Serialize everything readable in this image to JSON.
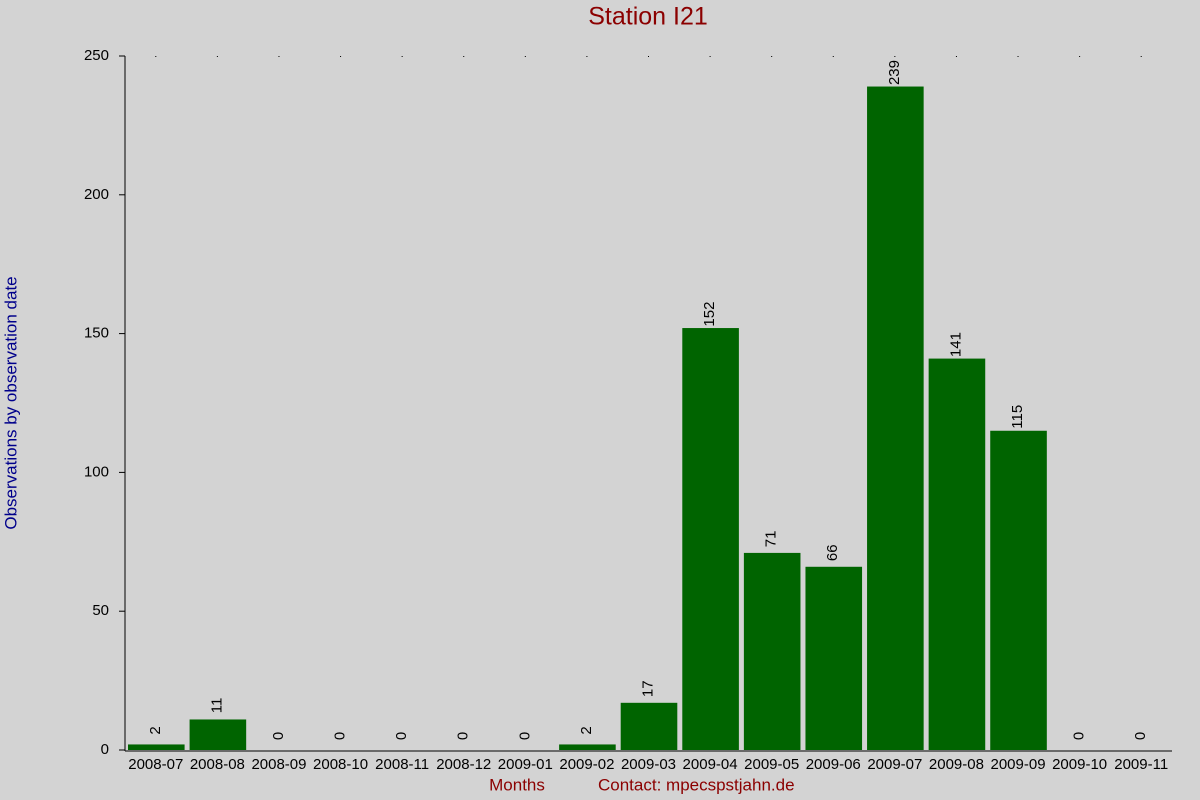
{
  "chart_data": {
    "type": "bar",
    "title": "Station I21",
    "x_label": "Months",
    "y_label": "Observations by observation date",
    "footer": "Contact: mpecspstjahn.de",
    "categories": [
      "2008-07",
      "2008-08",
      "2008-09",
      "2008-10",
      "2008-11",
      "2008-12",
      "2009-01",
      "2009-02",
      "2009-03",
      "2009-04",
      "2009-05",
      "2009-06",
      "2009-07",
      "2009-08",
      "2009-09",
      "2009-10",
      "2009-11"
    ],
    "values": [
      2,
      11,
      0,
      0,
      0,
      0,
      0,
      2,
      17,
      152,
      71,
      66,
      239,
      141,
      115,
      0,
      0
    ],
    "color": "#006400",
    "ylim": [
      0,
      250
    ],
    "yticks": [
      0,
      50,
      100,
      150,
      200,
      250
    ],
    "grid": false
  }
}
